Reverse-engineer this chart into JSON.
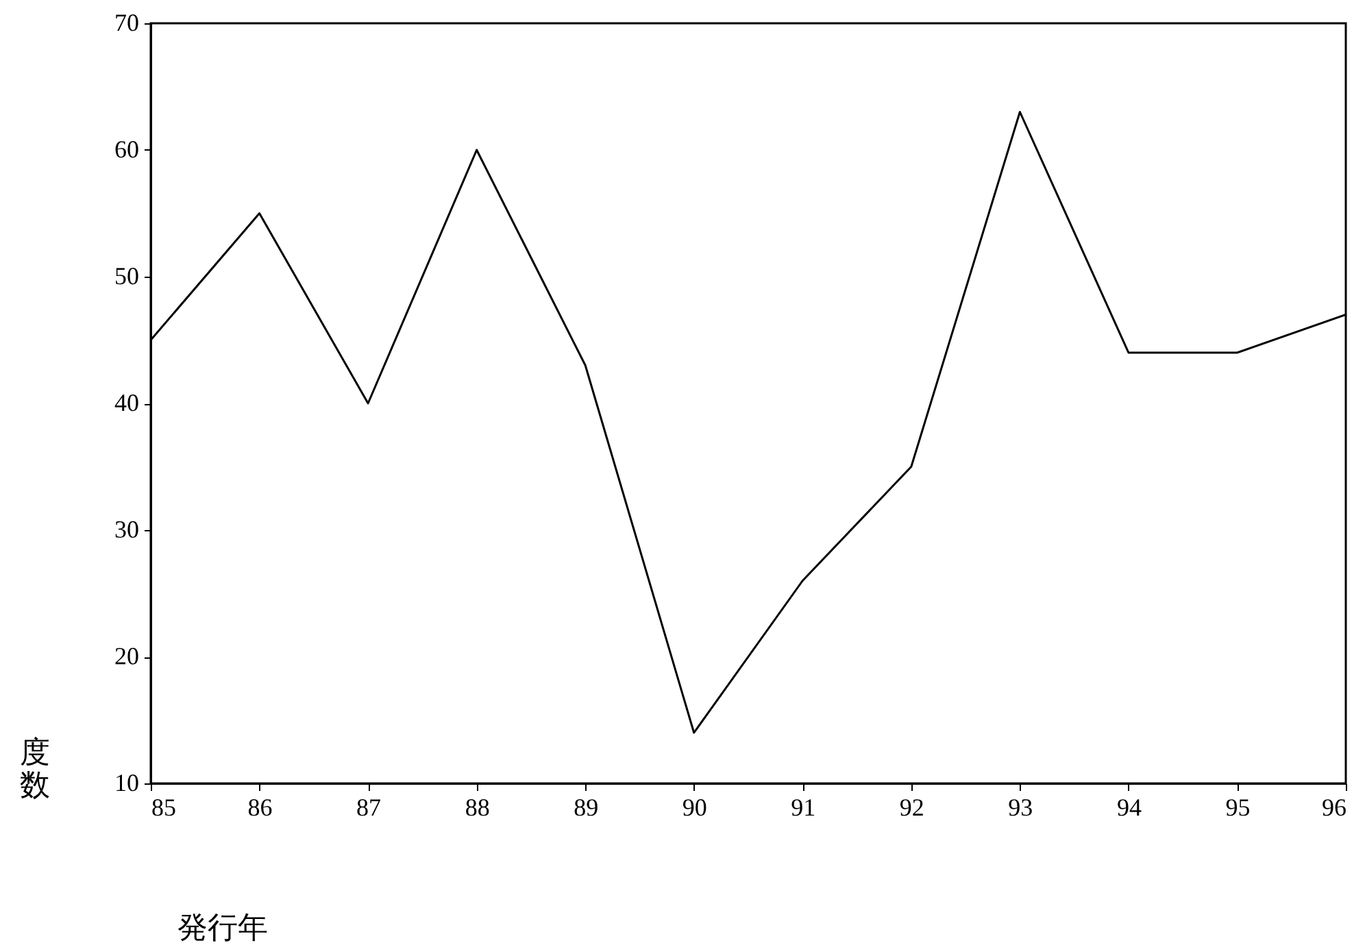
{
  "chart_data": {
    "type": "line",
    "xlabel": "発行年",
    "ylabel": "度数",
    "x": [
      85,
      86,
      87,
      88,
      89,
      90,
      91,
      92,
      93,
      94,
      95,
      96
    ],
    "series": [
      {
        "color": "#000000",
        "values": [
          45,
          55,
          40,
          60,
          43,
          14,
          26,
          35,
          63,
          44,
          44,
          47
        ]
      }
    ],
    "xlim": [
      85,
      96
    ],
    "xticks": [
      85,
      86,
      87,
      88,
      89,
      90,
      91,
      92,
      93,
      94,
      95,
      96
    ],
    "ylim": [
      10,
      70
    ],
    "yticks": [
      10,
      20,
      30,
      40,
      50,
      60,
      70
    ],
    "grid": false,
    "marker": "none",
    "line_style": "solid"
  }
}
